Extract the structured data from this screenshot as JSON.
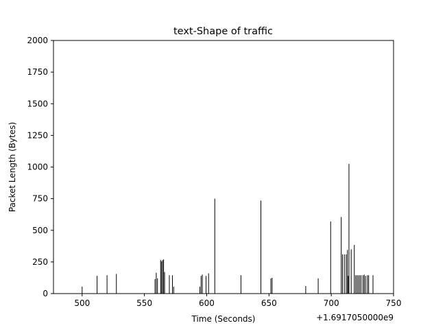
{
  "chart_data": {
    "type": "bar",
    "title": "text-Shape of traffic",
    "xlabel": "Time (Seconds)",
    "ylabel": "Packet Length (Bytes)",
    "x_offset_label": "+1.6917050000e9",
    "xlim": [
      477,
      750
    ],
    "ylim": [
      0,
      2000
    ],
    "x_ticks": [
      500,
      550,
      600,
      650,
      700,
      750
    ],
    "y_ticks": [
      0,
      250,
      500,
      750,
      1000,
      1250,
      1500,
      1750,
      2000
    ],
    "grid": false,
    "bar_color": "#000000",
    "points": [
      [
        500.0,
        55
      ],
      [
        512.0,
        140
      ],
      [
        520.0,
        145
      ],
      [
        527.5,
        155
      ],
      [
        558.5,
        115
      ],
      [
        559.5,
        165
      ],
      [
        560.5,
        120
      ],
      [
        563.0,
        265
      ],
      [
        563.8,
        255
      ],
      [
        564.6,
        265
      ],
      [
        565.4,
        270
      ],
      [
        566.2,
        170
      ],
      [
        570.0,
        145
      ],
      [
        572.5,
        145
      ],
      [
        573.5,
        55
      ],
      [
        594.5,
        55
      ],
      [
        595.5,
        140
      ],
      [
        596.5,
        150
      ],
      [
        599.5,
        140
      ],
      [
        601.5,
        160
      ],
      [
        606.5,
        750
      ],
      [
        627.5,
        145
      ],
      [
        643.5,
        735
      ],
      [
        651.5,
        120
      ],
      [
        652.5,
        125
      ],
      [
        679.5,
        60
      ],
      [
        689.5,
        120
      ],
      [
        699.5,
        570
      ],
      [
        708.0,
        605
      ],
      [
        709.0,
        310
      ],
      [
        710.5,
        310
      ],
      [
        712.0,
        310
      ],
      [
        713.0,
        345
      ],
      [
        713.6,
        140
      ],
      [
        714.2,
        1025
      ],
      [
        716.0,
        350
      ],
      [
        718.5,
        385
      ],
      [
        719.6,
        145
      ],
      [
        720.7,
        145
      ],
      [
        721.8,
        145
      ],
      [
        722.9,
        145
      ],
      [
        724.0,
        145
      ],
      [
        725.5,
        145
      ],
      [
        726.5,
        150
      ],
      [
        727.5,
        140
      ],
      [
        729.0,
        145
      ],
      [
        730.0,
        145
      ],
      [
        733.5,
        145
      ]
    ]
  }
}
